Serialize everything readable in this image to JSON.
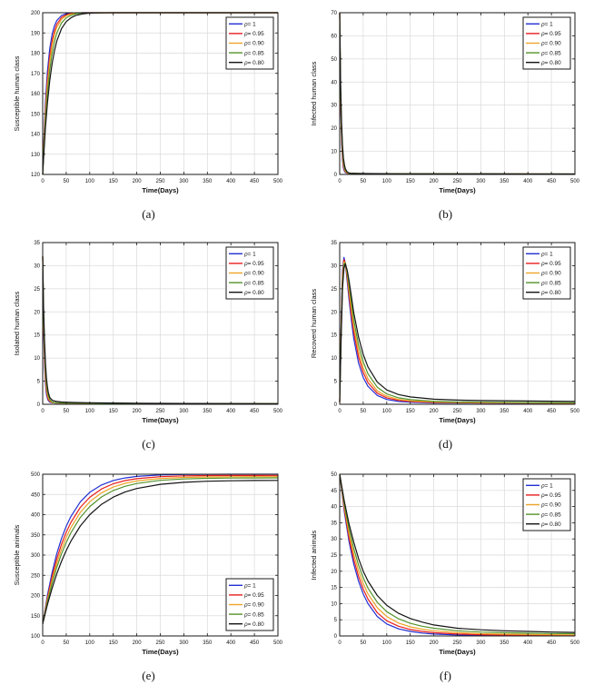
{
  "figure": {
    "background": "#ffffff"
  },
  "chart_data": [
    {
      "id": "a",
      "type": "line",
      "caption": "(a)",
      "xlabel": "Time(Days)",
      "ylabel": "Susceptible human class",
      "xlim": [
        0,
        500
      ],
      "ylim": [
        120,
        200
      ],
      "xticks": [
        0,
        50,
        100,
        150,
        200,
        250,
        300,
        350,
        400,
        450,
        500
      ],
      "yticks": [
        120,
        130,
        140,
        150,
        160,
        170,
        180,
        190,
        200
      ],
      "grid": true,
      "legend_position": "top-right",
      "x": [
        0,
        3,
        6,
        10,
        15,
        20,
        25,
        30,
        40,
        50,
        60,
        70,
        85,
        100,
        125,
        150,
        200,
        250,
        300,
        350,
        400,
        450,
        500
      ],
      "series": [
        {
          "name": "ρ= 1",
          "color": "#2230d2",
          "y": [
            120,
            140.9,
            156.4,
            170.9,
            182.4,
            189.4,
            193.6,
            196.1,
            198.6,
            199.5,
            199.8,
            199.9,
            200,
            200,
            200,
            200,
            200,
            200,
            200,
            200,
            200,
            200,
            200
          ]
        },
        {
          "name": "ρ= 0.95",
          "color": "#e81e1e",
          "y": [
            120,
            138.6,
            152.8,
            166.8,
            178.6,
            186.2,
            191.1,
            194.3,
            197.6,
            199.0,
            199.6,
            199.8,
            200,
            200,
            200,
            200,
            200,
            200,
            200,
            200,
            200,
            200,
            200
          ]
        },
        {
          "name": "ρ= 0.90",
          "color": "#eda426",
          "y": [
            120,
            137.1,
            150.5,
            164.1,
            175.9,
            183.8,
            189.2,
            192.7,
            196.7,
            198.5,
            199.3,
            199.7,
            199.9,
            200,
            200,
            200,
            200,
            200,
            200,
            200,
            200,
            200,
            200
          ]
        },
        {
          "name": "ρ= 0.85",
          "color": "#53932c",
          "y": [
            120,
            135.0,
            147.1,
            159.9,
            171.6,
            179.9,
            185.7,
            189.9,
            194.9,
            197.5,
            198.7,
            199.4,
            199.8,
            199.9,
            200,
            200,
            200,
            200,
            200,
            200,
            200,
            200,
            200
          ]
        },
        {
          "name": "ρ= 0.80",
          "color": "#141414",
          "y": [
            120,
            132.8,
            143.5,
            155.2,
            166.5,
            174.9,
            181.2,
            186.0,
            192.1,
            195.6,
            197.5,
            198.6,
            199.4,
            199.8,
            199.9,
            200,
            200,
            200,
            200,
            200,
            200,
            200,
            200
          ]
        }
      ]
    },
    {
      "id": "b",
      "type": "line",
      "caption": "(b)",
      "xlabel": "Time(Days)",
      "ylabel": "Infected human class",
      "xlim": [
        0,
        500
      ],
      "ylim": [
        0,
        70
      ],
      "xticks": [
        0,
        50,
        100,
        150,
        200,
        250,
        300,
        350,
        400,
        450,
        500
      ],
      "yticks": [
        0,
        10,
        20,
        30,
        40,
        50,
        60,
        70
      ],
      "grid": true,
      "legend_position": "top-right",
      "x": [
        0,
        2,
        4,
        6,
        8,
        10,
        12,
        15,
        20,
        25,
        30,
        40,
        50,
        75,
        100,
        150,
        200,
        300,
        400,
        500
      ],
      "series": [
        {
          "name": "ρ= 1",
          "color": "#2230d2",
          "y": [
            70,
            30.4,
            13.4,
            6.0,
            2.8,
            1.4,
            0.85,
            0.53,
            0.42,
            0.4,
            0.38,
            0.36,
            0.34,
            0.3,
            0.28,
            0.25,
            0.22,
            0.2,
            0.18,
            0.16
          ]
        },
        {
          "name": "ρ= 0.95",
          "color": "#e81e1e",
          "y": [
            70,
            32.9,
            15.6,
            7.5,
            3.7,
            2.0,
            1.1,
            0.64,
            0.43,
            0.41,
            0.39,
            0.37,
            0.35,
            0.31,
            0.29,
            0.26,
            0.23,
            0.2,
            0.18,
            0.17
          ]
        },
        {
          "name": "ρ= 0.90",
          "color": "#eda426",
          "y": [
            70,
            35.0,
            17.6,
            8.9,
            4.6,
            2.5,
            1.4,
            0.76,
            0.46,
            0.42,
            0.4,
            0.38,
            0.36,
            0.32,
            0.3,
            0.27,
            0.24,
            0.21,
            0.19,
            0.17
          ]
        },
        {
          "name": "ρ= 0.85",
          "color": "#53932c",
          "y": [
            70,
            37.1,
            19.7,
            10.6,
            5.8,
            3.2,
            1.9,
            0.97,
            0.51,
            0.44,
            0.41,
            0.39,
            0.37,
            0.33,
            0.31,
            0.28,
            0.25,
            0.22,
            0.2,
            0.18
          ]
        },
        {
          "name": "ρ= 0.80",
          "color": "#141414",
          "y": [
            70,
            39.4,
            22.2,
            12.6,
            7.2,
            4.2,
            2.5,
            1.3,
            0.6,
            0.48,
            0.44,
            0.41,
            0.39,
            0.35,
            0.32,
            0.29,
            0.26,
            0.23,
            0.21,
            0.19
          ]
        }
      ]
    },
    {
      "id": "c",
      "type": "line",
      "caption": "(c)",
      "xlabel": "Time(Days)",
      "ylabel": "Isolated human class",
      "xlim": [
        0,
        500
      ],
      "ylim": [
        0,
        35
      ],
      "xticks": [
        0,
        50,
        100,
        150,
        200,
        250,
        300,
        350,
        400,
        450,
        500
      ],
      "yticks": [
        0,
        5,
        10,
        15,
        20,
        25,
        30,
        35
      ],
      "grid": true,
      "legend_position": "top-right",
      "x": [
        0,
        2,
        4,
        6,
        8,
        10,
        12,
        15,
        20,
        25,
        30,
        40,
        50,
        75,
        100,
        150,
        200,
        300,
        400,
        500
      ],
      "series": [
        {
          "name": "ρ= 1",
          "color": "#2230d2",
          "y": [
            32,
            16.0,
            8.1,
            4.2,
            2.2,
            1.26,
            0.78,
            0.46,
            0.33,
            0.3,
            0.28,
            0.26,
            0.25,
            0.22,
            0.2,
            0.17,
            0.15,
            0.12,
            0.1,
            0.1
          ]
        },
        {
          "name": "ρ= 0.95",
          "color": "#e81e1e",
          "y": [
            32,
            17.4,
            9.5,
            5.2,
            3.0,
            1.7,
            1.07,
            0.6,
            0.36,
            0.31,
            0.29,
            0.27,
            0.26,
            0.23,
            0.21,
            0.18,
            0.16,
            0.13,
            0.11,
            0.1
          ]
        },
        {
          "name": "ρ= 0.90",
          "color": "#eda426",
          "y": [
            32,
            18.4,
            10.6,
            6.2,
            3.7,
            2.2,
            1.4,
            0.78,
            0.42,
            0.32,
            0.3,
            0.28,
            0.27,
            0.24,
            0.22,
            0.19,
            0.17,
            0.14,
            0.12,
            0.11
          ]
        },
        {
          "name": "ρ= 0.85",
          "color": "#53932c",
          "y": [
            32,
            19.5,
            12.0,
            7.4,
            4.6,
            2.9,
            1.9,
            1.05,
            0.51,
            0.38,
            0.33,
            0.3,
            0.28,
            0.25,
            0.23,
            0.2,
            0.18,
            0.15,
            0.13,
            0.12
          ]
        },
        {
          "name": "ρ= 0.80",
          "color": "#141414",
          "y": [
            32,
            20.7,
            13.4,
            8.8,
            5.75,
            3.8,
            2.56,
            1.47,
            0.9,
            0.7,
            0.6,
            0.5,
            0.45,
            0.38,
            0.33,
            0.27,
            0.23,
            0.18,
            0.15,
            0.13
          ]
        }
      ]
    },
    {
      "id": "d",
      "type": "line",
      "caption": "(d)",
      "xlabel": "Time(Days)",
      "ylabel": "Recoverd human class",
      "xlim": [
        0,
        500
      ],
      "ylim": [
        0,
        35
      ],
      "xticks": [
        0,
        50,
        100,
        150,
        200,
        250,
        300,
        350,
        400,
        450,
        500
      ],
      "yticks": [
        0,
        5,
        10,
        15,
        20,
        25,
        30,
        35
      ],
      "grid": true,
      "legend_position": "top-right",
      "x": [
        0,
        3,
        6,
        9,
        12,
        16,
        20,
        25,
        30,
        40,
        50,
        60,
        80,
        100,
        125,
        150,
        200,
        250,
        300,
        400,
        500
      ],
      "series": [
        {
          "name": "ρ= 1",
          "color": "#2230d2",
          "y": [
            0.5,
            18.0,
            29.0,
            31.8,
            30.5,
            26.5,
            22.5,
            18.0,
            14.2,
            9.0,
            5.8,
            3.9,
            1.9,
            1.05,
            0.6,
            0.45,
            0.3,
            0.28,
            0.25,
            0.22,
            0.2
          ]
        },
        {
          "name": "ρ= 0.95",
          "color": "#e81e1e",
          "y": [
            0.5,
            17.0,
            28.0,
            31.3,
            30.6,
            27.3,
            23.6,
            19.2,
            15.6,
            10.3,
            6.9,
            4.7,
            2.4,
            1.4,
            0.85,
            0.6,
            0.4,
            0.33,
            0.3,
            0.26,
            0.23
          ]
        },
        {
          "name": "ρ= 0.90",
          "color": "#eda426",
          "y": [
            0.5,
            16.2,
            27.2,
            30.8,
            30.6,
            27.9,
            24.6,
            20.4,
            16.8,
            11.5,
            7.9,
            5.5,
            2.9,
            1.75,
            1.05,
            0.75,
            0.5,
            0.4,
            0.35,
            0.3,
            0.27
          ]
        },
        {
          "name": "ρ= 0.85",
          "color": "#53932c",
          "y": [
            0.5,
            15.3,
            26.2,
            30.2,
            30.6,
            28.5,
            25.6,
            21.8,
            18.2,
            12.9,
            9.2,
            6.6,
            3.7,
            2.25,
            1.4,
            1.0,
            0.65,
            0.5,
            0.45,
            0.38,
            0.33
          ]
        },
        {
          "name": "ρ= 0.80",
          "color": "#141414",
          "y": [
            0.5,
            14.2,
            25.0,
            29.4,
            30.4,
            29.0,
            26.6,
            23.2,
            19.8,
            14.6,
            10.8,
            8.1,
            4.8,
            3.1,
            2.1,
            1.6,
            1.1,
            0.9,
            0.8,
            0.7,
            0.6
          ]
        }
      ]
    },
    {
      "id": "e",
      "type": "line",
      "caption": "(e)",
      "xlabel": "Time(Days)",
      "ylabel": "Susceptible animals",
      "xlim": [
        0,
        500
      ],
      "ylim": [
        100,
        500
      ],
      "xticks": [
        0,
        50,
        100,
        150,
        200,
        250,
        300,
        350,
        400,
        450,
        500
      ],
      "yticks": [
        100,
        150,
        200,
        250,
        300,
        350,
        400,
        450,
        500
      ],
      "grid": true,
      "legend_position": "bottom-right",
      "x": [
        0,
        10,
        20,
        30,
        40,
        50,
        60,
        80,
        100,
        125,
        150,
        175,
        200,
        250,
        300,
        350,
        400,
        450,
        500
      ],
      "series": [
        {
          "name": "ρ= 1",
          "color": "#2230d2",
          "y": [
            130,
            200.4,
            257.4,
            303.5,
            340.9,
            371.2,
            395.7,
            431.6,
            455.2,
            473.5,
            484.4,
            490.8,
            494.6,
            498.1,
            499.3,
            499.8,
            499.9,
            500,
            500
          ]
        },
        {
          "name": "ρ= 0.95",
          "color": "#e81e1e",
          "y": [
            130,
            194.1,
            247.0,
            290.7,
            326.7,
            356.5,
            381.0,
            418.0,
            443.0,
            463.7,
            476.4,
            484.3,
            489.1,
            494.0,
            495.9,
            496.6,
            496.8,
            496.9,
            497
          ]
        },
        {
          "name": "ρ= 0.90",
          "color": "#eda426",
          "y": [
            130,
            189.0,
            238.5,
            280.0,
            314.7,
            343.8,
            368.1,
            405.7,
            432.0,
            454.2,
            468.4,
            477.6,
            483.4,
            489.6,
            492.2,
            493.3,
            493.7,
            493.9,
            494
          ]
        },
        {
          "name": "ρ= 0.85",
          "color": "#53932c",
          "y": [
            130,
            184.3,
            230.4,
            269.6,
            302.9,
            331.2,
            355.2,
            393.0,
            420.0,
            443.9,
            459.7,
            470.2,
            477.1,
            484.9,
            488.3,
            489.8,
            490.5,
            490.8,
            491
          ]
        },
        {
          "name": "ρ= 0.80",
          "color": "#141414",
          "y": [
            130,
            177.3,
            218.3,
            253.8,
            284.6,
            311.3,
            334.5,
            371.9,
            400.0,
            425.6,
            443.4,
            455.9,
            464.7,
            475.1,
            480.1,
            482.6,
            483.8,
            484.4,
            484.7
          ]
        }
      ]
    },
    {
      "id": "f",
      "type": "line",
      "caption": "(f)",
      "xlabel": "Time(Days)",
      "ylabel": "Infected animals",
      "xlim": [
        0,
        500
      ],
      "ylim": [
        0,
        50
      ],
      "xticks": [
        0,
        50,
        100,
        150,
        200,
        250,
        300,
        350,
        400,
        450,
        500
      ],
      "yticks": [
        0,
        5,
        10,
        15,
        20,
        25,
        30,
        35,
        40,
        45,
        50
      ],
      "grid": true,
      "legend_position": "top-right",
      "x": [
        0,
        10,
        20,
        30,
        40,
        50,
        60,
        80,
        100,
        125,
        150,
        175,
        200,
        250,
        300,
        350,
        400,
        450,
        500
      ],
      "series": [
        {
          "name": "ρ= 1",
          "color": "#2230d2",
          "y": [
            50,
            38.2,
            29.0,
            22.2,
            17.0,
            13.0,
            10.0,
            6.0,
            3.7,
            2.2,
            1.4,
            0.9,
            0.6,
            0.3,
            0.2,
            0.15,
            0.1,
            0.1,
            0.1
          ]
        },
        {
          "name": "ρ= 0.95",
          "color": "#e81e1e",
          "y": [
            50,
            39.0,
            30.2,
            23.6,
            18.5,
            14.5,
            11.4,
            7.2,
            4.7,
            3.0,
            2.0,
            1.4,
            1.0,
            0.6,
            0.4,
            0.3,
            0.25,
            0.2,
            0.18
          ]
        },
        {
          "name": "ρ= 0.90",
          "color": "#eda426",
          "y": [
            50,
            39.8,
            31.5,
            25.2,
            20.2,
            16.2,
            13.0,
            8.7,
            6.0,
            4.0,
            2.8,
            2.1,
            1.6,
            1.0,
            0.7,
            0.55,
            0.45,
            0.4,
            0.35
          ]
        },
        {
          "name": "ρ= 0.85",
          "color": "#53932c",
          "y": [
            50,
            40.5,
            33.0,
            27.0,
            22.0,
            18.0,
            14.8,
            10.4,
            7.5,
            5.3,
            3.9,
            3.0,
            2.4,
            1.6,
            1.2,
            1.0,
            0.85,
            0.75,
            0.7
          ]
        },
        {
          "name": "ρ= 0.80",
          "color": "#141414",
          "y": [
            50,
            41.5,
            34.5,
            29.0,
            24.0,
            20.0,
            17.0,
            12.5,
            9.5,
            7.0,
            5.4,
            4.3,
            3.4,
            2.4,
            1.9,
            1.6,
            1.4,
            1.2,
            1.1
          ]
        }
      ]
    }
  ]
}
